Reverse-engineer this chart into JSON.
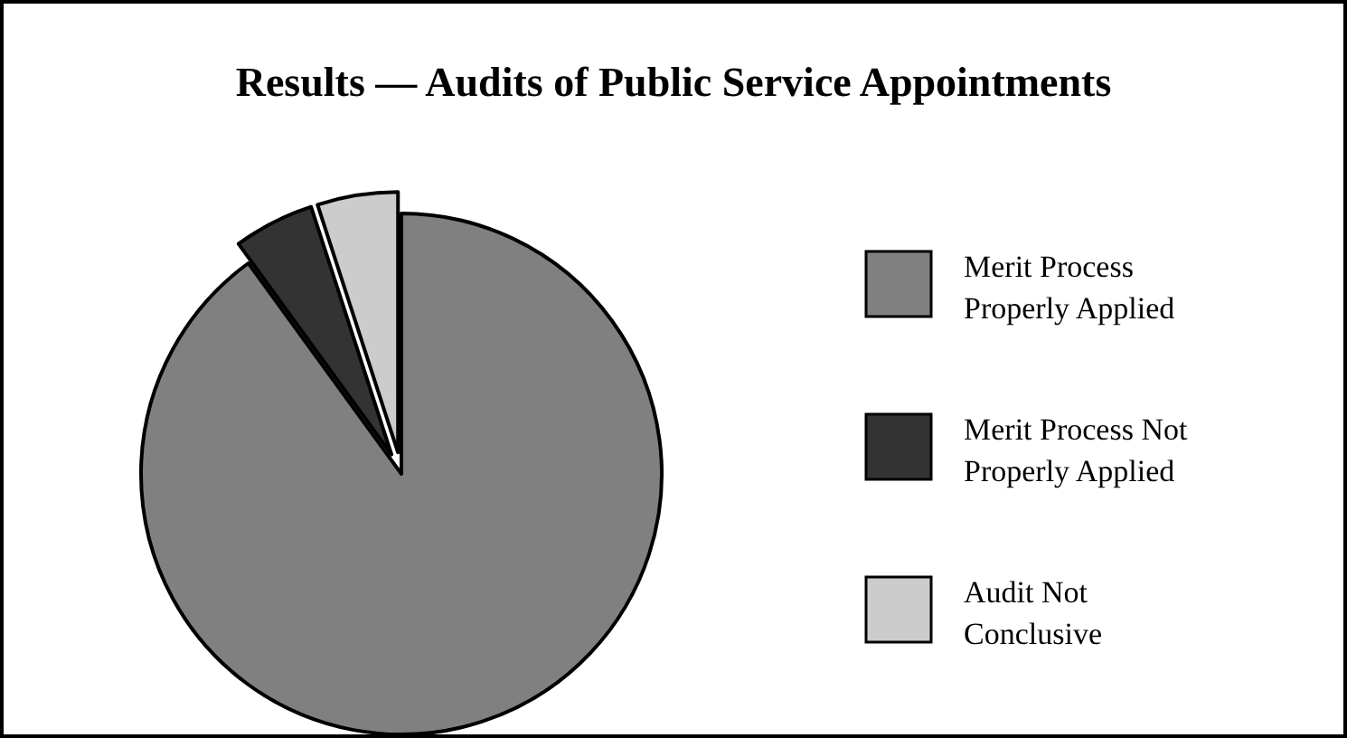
{
  "chart_data": {
    "type": "pie",
    "title": "Results — Audits of Public Service Appointments",
    "categories": [
      "Merit Process Properly Applied",
      "Merit Process Not Properly Applied",
      "Audit Not Conclusive"
    ],
    "values": [
      90,
      5,
      5
    ],
    "colors": [
      "#808080",
      "#333333",
      "#cccccc"
    ],
    "legend": "right"
  }
}
